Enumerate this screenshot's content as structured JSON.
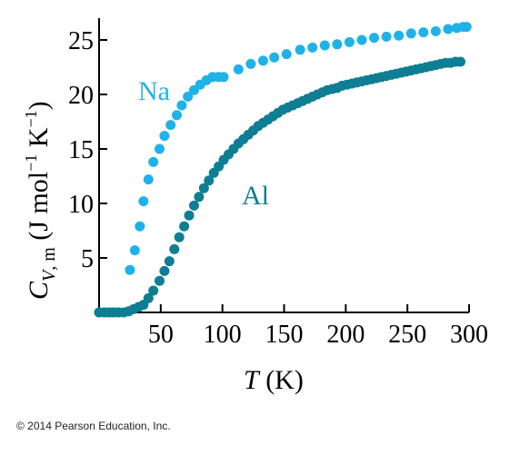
{
  "chart_data": {
    "type": "scatter",
    "title": "",
    "xlabel": "T (K)",
    "ylabel": "C_V,m (J mol^-1 K^-1)",
    "xlim": [
      0,
      300
    ],
    "ylim": [
      0,
      27
    ],
    "x_ticks": [
      50,
      100,
      150,
      200,
      250,
      300
    ],
    "y_ticks": [
      5,
      10,
      15,
      20,
      25
    ],
    "x_tick_labels": [
      "50",
      "100",
      "150",
      "200",
      "250",
      "300"
    ],
    "y_tick_labels": [
      "5",
      "10",
      "15",
      "20",
      "25"
    ],
    "grid": false,
    "legend": "none (series labelled directly on plot)",
    "series": [
      {
        "name": "Na",
        "color": "#1fb2e8",
        "points": [
          [
            0,
            0
          ],
          [
            5,
            0
          ],
          [
            10,
            0
          ],
          [
            15,
            0
          ],
          [
            25,
            3.9
          ],
          [
            29,
            5.7
          ],
          [
            33,
            7.9
          ],
          [
            36,
            10.2
          ],
          [
            40,
            12.2
          ],
          [
            44,
            13.8
          ],
          [
            49,
            15.0
          ],
          [
            53,
            16.2
          ],
          [
            58,
            17.2
          ],
          [
            63,
            18.1
          ],
          [
            67,
            19.0
          ],
          [
            72,
            19.8
          ],
          [
            77,
            20.4
          ],
          [
            82,
            20.9
          ],
          [
            87,
            21.3
          ],
          [
            92,
            21.6
          ],
          [
            97,
            21.6
          ],
          [
            101,
            21.6
          ],
          [
            113,
            22.3
          ],
          [
            123,
            22.8
          ],
          [
            133,
            23.1
          ],
          [
            142,
            23.4
          ],
          [
            152,
            23.7
          ],
          [
            163,
            24.1
          ],
          [
            173,
            24.3
          ],
          [
            183,
            24.5
          ],
          [
            193,
            24.6
          ],
          [
            203,
            24.8
          ],
          [
            213,
            25.0
          ],
          [
            223,
            25.2
          ],
          [
            233,
            25.3
          ],
          [
            243,
            25.4
          ],
          [
            253,
            25.6
          ],
          [
            263,
            25.7
          ],
          [
            273,
            25.8
          ],
          [
            283,
            26.0
          ],
          [
            290,
            26.1
          ],
          [
            295,
            26.2
          ],
          [
            298,
            26.2
          ]
        ]
      },
      {
        "name": "Al",
        "color": "#0e7e93",
        "points": [
          [
            0,
            0
          ],
          [
            4,
            0
          ],
          [
            8,
            0
          ],
          [
            12,
            0
          ],
          [
            16,
            0
          ],
          [
            20,
            0
          ],
          [
            24,
            0.1
          ],
          [
            28,
            0.3
          ],
          [
            32,
            0.5
          ],
          [
            36,
            0.7
          ],
          [
            40,
            1.3
          ],
          [
            44,
            2.0
          ],
          [
            49,
            2.9
          ],
          [
            53,
            3.8
          ],
          [
            57,
            4.7
          ],
          [
            61,
            5.8
          ],
          [
            65,
            6.9
          ],
          [
            69,
            7.9
          ],
          [
            73,
            8.9
          ],
          [
            77,
            9.8
          ],
          [
            81,
            10.6
          ],
          [
            85,
            11.4
          ],
          [
            89,
            12.1
          ],
          [
            93,
            12.8
          ],
          [
            97,
            13.4
          ],
          [
            101,
            14.0
          ],
          [
            105,
            14.5
          ],
          [
            109,
            15.0
          ],
          [
            113,
            15.5
          ],
          [
            117,
            15.9
          ],
          [
            121,
            16.3
          ],
          [
            125,
            16.7
          ],
          [
            129,
            17.1
          ],
          [
            133,
            17.4
          ],
          [
            137,
            17.7
          ],
          [
            141,
            18.0
          ],
          [
            145,
            18.3
          ],
          [
            149,
            18.6
          ],
          [
            153,
            18.8
          ],
          [
            157,
            19.0
          ],
          [
            161,
            19.2
          ],
          [
            165,
            19.4
          ],
          [
            169,
            19.6
          ],
          [
            173,
            19.8
          ],
          [
            177,
            20.0
          ],
          [
            181,
            20.2
          ],
          [
            185,
            20.4
          ],
          [
            189,
            20.5
          ],
          [
            193,
            20.6
          ],
          [
            197,
            20.8
          ],
          [
            201,
            20.9
          ],
          [
            205,
            21.0
          ],
          [
            209,
            21.1
          ],
          [
            213,
            21.2
          ],
          [
            217,
            21.3
          ],
          [
            221,
            21.4
          ],
          [
            225,
            21.5
          ],
          [
            229,
            21.6
          ],
          [
            233,
            21.7
          ],
          [
            237,
            21.8
          ],
          [
            241,
            21.9
          ],
          [
            245,
            22.0
          ],
          [
            249,
            22.1
          ],
          [
            253,
            22.2
          ],
          [
            257,
            22.3
          ],
          [
            261,
            22.4
          ],
          [
            265,
            22.5
          ],
          [
            269,
            22.6
          ],
          [
            273,
            22.7
          ],
          [
            277,
            22.8
          ],
          [
            281,
            22.9
          ],
          [
            285,
            22.9
          ],
          [
            289,
            23.0
          ],
          [
            293,
            23.0
          ]
        ]
      }
    ]
  },
  "labels": {
    "series_na": "Na",
    "series_al": "Al",
    "x_axis_title": "T (K)",
    "y_axis_title": "C_V,m (J mol^-1 K^-1)"
  },
  "footer": {
    "copyright": "© 2014 Pearson Education, Inc."
  }
}
